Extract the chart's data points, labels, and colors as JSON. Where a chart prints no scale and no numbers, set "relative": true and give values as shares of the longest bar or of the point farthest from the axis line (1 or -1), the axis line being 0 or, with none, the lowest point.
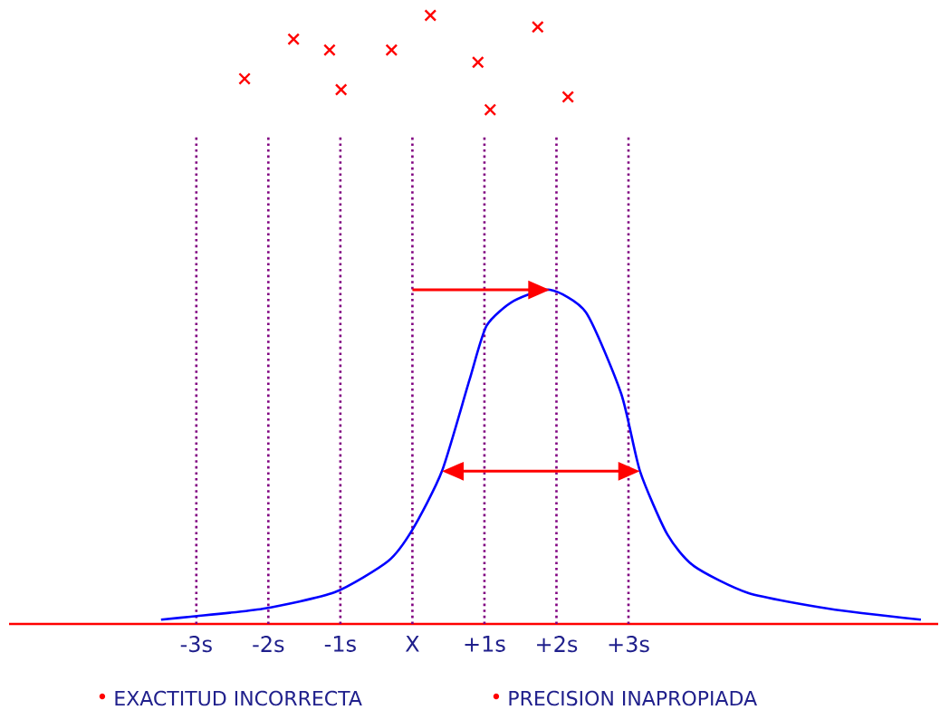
{
  "chart_data": {
    "type": "line",
    "relative": true,
    "xlim": [
      -5.6,
      7.3
    ],
    "xticks": [
      {
        "value": -3,
        "label": "-3s"
      },
      {
        "value": -2,
        "label": "-2s"
      },
      {
        "value": -1,
        "label": "-1s"
      },
      {
        "value": 0,
        "label": "X"
      },
      {
        "value": 1,
        "label": "+1s"
      },
      {
        "value": 2,
        "label": "+2s"
      },
      {
        "value": 3,
        "label": "+3s"
      }
    ],
    "series": [
      {
        "color": "#0000ff",
        "marker": "none",
        "x": [
          -3.49,
          -3.08,
          -2.08,
          -1.08,
          -0.34,
          0,
          0.41,
          0.79,
          1.03,
          1.41,
          1.91,
          2.41,
          2.9,
          3.16,
          3.54,
          3.91,
          4.66,
          5.79,
          7.06
        ],
        "values": [
          0.007,
          0.012,
          0.025,
          0.052,
          0.103,
          0.155,
          0.251,
          0.4,
          0.49,
          0.531,
          0.549,
          0.512,
          0.378,
          0.251,
          0.147,
          0.095,
          0.051,
          0.025,
          0.007
        ]
      },
      {
        "type": "scatter",
        "color": "#ff0000",
        "marker": "cross",
        "x": [
          -2.33,
          -1.65,
          -1.15,
          -0.99,
          -0.29,
          0.25,
          0.91,
          1.08,
          1.74,
          2.16
        ],
        "values": [
          0.896,
          0.961,
          0.943,
          0.878,
          0.943,
          1.0,
          0.923,
          0.845,
          0.981,
          0.866
        ]
      }
    ],
    "ref_lines": [
      {
        "axis": "x",
        "value": -3,
        "color": "#800080",
        "line_style": "dotted"
      },
      {
        "axis": "x",
        "value": -2,
        "color": "#800080",
        "line_style": "dotted"
      },
      {
        "axis": "x",
        "value": -1,
        "color": "#800080",
        "line_style": "dotted"
      },
      {
        "axis": "x",
        "value": 0,
        "color": "#800080",
        "line_style": "dotted"
      },
      {
        "axis": "x",
        "value": 1,
        "color": "#800080",
        "line_style": "dotted"
      },
      {
        "axis": "x",
        "value": 2,
        "color": "#800080",
        "line_style": "dotted"
      },
      {
        "axis": "x",
        "value": 3,
        "color": "#800080",
        "line_style": "dotted"
      }
    ],
    "annotations": [
      "EXACTITUD INCORRECTA",
      "PRECISION INAPROPIADA"
    ]
  }
}
